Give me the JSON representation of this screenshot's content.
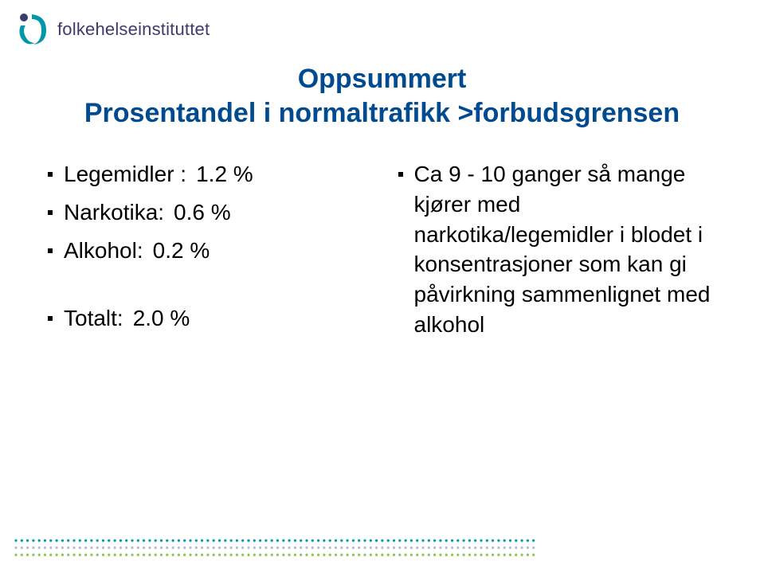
{
  "logo": {
    "text": "folkehelseinstituttet",
    "mark_color_primary": "#0097a7",
    "mark_color_accent": "#3b3b6d",
    "text_color": "#3b3b6d"
  },
  "title": {
    "line1": "Oppsummert",
    "line2": "Prosentandel i normaltrafikk >forbudsgrensen",
    "color": "#004a8f",
    "fontsize": 34
  },
  "left_column": {
    "items": [
      {
        "label": "Legemidler :",
        "value": "1.2 %"
      },
      {
        "label": "Narkotika:",
        "value": "0.6 %"
      },
      {
        "label": "Alkohol:",
        "value": "0.2 %"
      }
    ],
    "total": {
      "label": "Totalt:",
      "value": "2.0 %"
    },
    "text_color": "#000000",
    "fontsize": 28
  },
  "right_column": {
    "text": "Ca 9 - 10 ganger så mange kjører med narkotika/legemidler i blodet i konsentrasjoner som kan gi påvirkning sammenlignet med alkohol",
    "text_color": "#000000",
    "fontsize": 28
  },
  "footer": {
    "dot_colors": [
      "#0097a7",
      "#3b3b6d",
      "#8bc34a",
      "#b0bec5"
    ],
    "row_count": 3,
    "dots_per_row": 90
  }
}
